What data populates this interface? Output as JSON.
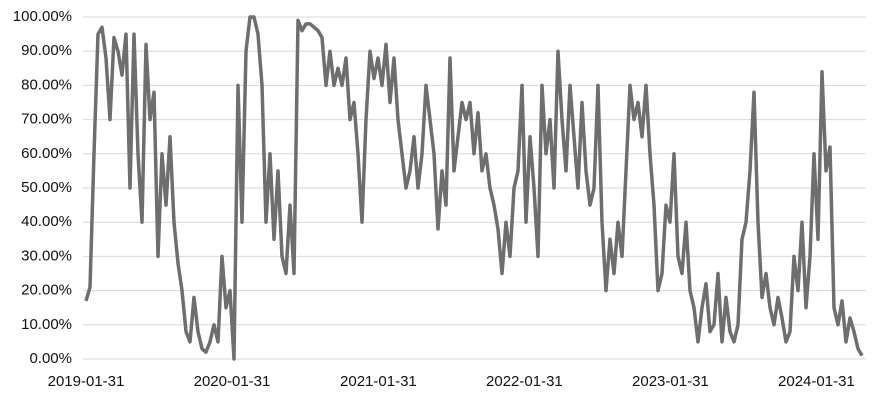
{
  "chart_data": {
    "type": "line",
    "x": [
      "2019-01-31",
      "2019-02-10",
      "2019-02-20",
      "2019-03-02",
      "2019-03-12",
      "2019-03-22",
      "2019-04-01",
      "2019-04-11",
      "2019-04-21",
      "2019-05-01",
      "2019-05-11",
      "2019-05-21",
      "2019-05-31",
      "2019-06-10",
      "2019-06-20",
      "2019-06-30",
      "2019-07-10",
      "2019-07-20",
      "2019-07-30",
      "2019-08-09",
      "2019-08-19",
      "2019-08-29",
      "2019-09-08",
      "2019-09-18",
      "2019-09-28",
      "2019-10-08",
      "2019-10-18",
      "2019-10-28",
      "2019-11-07",
      "2019-11-17",
      "2019-11-27",
      "2019-12-07",
      "2019-12-17",
      "2019-12-27",
      "2020-01-06",
      "2020-01-16",
      "2020-01-26",
      "2020-02-05",
      "2020-02-15",
      "2020-02-25",
      "2020-03-06",
      "2020-03-16",
      "2020-03-26",
      "2020-04-05",
      "2020-04-15",
      "2020-04-25",
      "2020-05-05",
      "2020-05-15",
      "2020-05-25",
      "2020-06-04",
      "2020-06-14",
      "2020-06-24",
      "2020-07-04",
      "2020-07-14",
      "2020-07-24",
      "2020-08-03",
      "2020-08-13",
      "2020-08-23",
      "2020-09-02",
      "2020-09-12",
      "2020-09-22",
      "2020-10-02",
      "2020-10-12",
      "2020-10-22",
      "2020-11-01",
      "2020-11-11",
      "2020-11-21",
      "2020-12-01",
      "2020-12-11",
      "2020-12-21",
      "2020-12-31",
      "2021-01-10",
      "2021-01-20",
      "2021-01-30",
      "2021-02-09",
      "2021-02-19",
      "2021-03-01",
      "2021-03-11",
      "2021-03-21",
      "2021-03-31",
      "2021-04-10",
      "2021-04-20",
      "2021-04-30",
      "2021-05-10",
      "2021-05-20",
      "2021-05-30",
      "2021-06-09",
      "2021-06-19",
      "2021-06-29",
      "2021-07-09",
      "2021-07-19",
      "2021-07-29",
      "2021-08-08",
      "2021-08-18",
      "2021-08-28",
      "2021-09-07",
      "2021-09-17",
      "2021-09-27",
      "2021-10-07",
      "2021-10-17",
      "2021-10-27",
      "2021-11-06",
      "2021-11-16",
      "2021-11-26",
      "2021-12-06",
      "2021-12-16",
      "2021-12-26",
      "2022-01-05",
      "2022-01-15",
      "2022-01-25",
      "2022-02-04",
      "2022-02-14",
      "2022-02-24",
      "2022-03-06",
      "2022-03-16",
      "2022-03-26",
      "2022-04-05",
      "2022-04-15",
      "2022-04-25",
      "2022-05-05",
      "2022-05-15",
      "2022-05-25",
      "2022-06-04",
      "2022-06-14",
      "2022-06-24",
      "2022-07-04",
      "2022-07-14",
      "2022-07-24",
      "2022-08-03",
      "2022-08-13",
      "2022-08-23",
      "2022-09-02",
      "2022-09-12",
      "2022-09-22",
      "2022-10-02",
      "2022-10-12",
      "2022-10-22",
      "2022-11-01",
      "2022-11-11",
      "2022-11-21",
      "2022-12-01",
      "2022-12-11",
      "2022-12-21",
      "2022-12-31",
      "2023-01-10",
      "2023-01-20",
      "2023-01-30",
      "2023-02-09",
      "2023-02-19",
      "2023-03-01",
      "2023-03-11",
      "2023-03-21",
      "2023-03-31",
      "2023-04-10",
      "2023-04-20",
      "2023-04-30",
      "2023-05-10",
      "2023-05-20",
      "2023-05-30",
      "2023-06-09",
      "2023-06-19",
      "2023-06-29",
      "2023-07-09",
      "2023-07-19",
      "2023-07-29",
      "2023-08-08",
      "2023-08-18",
      "2023-08-28",
      "2023-09-07",
      "2023-09-17",
      "2023-09-27",
      "2023-10-07",
      "2023-10-17",
      "2023-10-27",
      "2023-11-06",
      "2023-11-16",
      "2023-11-26",
      "2023-12-06",
      "2023-12-16",
      "2023-12-26",
      "2024-01-05",
      "2024-01-15",
      "2024-01-25",
      "2024-02-04",
      "2024-02-14",
      "2024-02-24",
      "2024-03-05",
      "2024-03-15",
      "2024-03-25",
      "2024-04-04",
      "2024-04-14",
      "2024-04-24",
      "2024-05-04",
      "2024-05-14",
      "2024-05-24"
    ],
    "series": [
      {
        "color": "#6e6e6e",
        "values": [
          17,
          21,
          60,
          95,
          97,
          88,
          70,
          94,
          90,
          83,
          95,
          50,
          95,
          60,
          40,
          92,
          70,
          78,
          30,
          60,
          45,
          65,
          40,
          28,
          20,
          8,
          5,
          18,
          8,
          3,
          2,
          5,
          10,
          5,
          30,
          15,
          20,
          0,
          80,
          40,
          90,
          100,
          100,
          95,
          80,
          40,
          60,
          35,
          55,
          30,
          25,
          45,
          25,
          99,
          96,
          98,
          98,
          97,
          96,
          94,
          80,
          90,
          80,
          85,
          80,
          88,
          70,
          75,
          60,
          40,
          70,
          90,
          82,
          88,
          80,
          92,
          75,
          88,
          70,
          60,
          50,
          55,
          65,
          50,
          60,
          80,
          70,
          60,
          38,
          55,
          45,
          88,
          55,
          65,
          75,
          70,
          75,
          60,
          72,
          55,
          60,
          50,
          45,
          38,
          25,
          40,
          30,
          50,
          55,
          80,
          40,
          65,
          50,
          30,
          80,
          60,
          70,
          50,
          90,
          70,
          55,
          80,
          65,
          50,
          75,
          55,
          45,
          50,
          80,
          40,
          20,
          35,
          25,
          40,
          30,
          55,
          80,
          70,
          75,
          65,
          80,
          60,
          45,
          20,
          25,
          45,
          40,
          60,
          30,
          25,
          40,
          20,
          15,
          5,
          15,
          22,
          8,
          10,
          25,
          5,
          18,
          8,
          5,
          10,
          35,
          40,
          55,
          78,
          40,
          18,
          25,
          15,
          10,
          18,
          12,
          5,
          8,
          30,
          20,
          40,
          15,
          30,
          60,
          35,
          84,
          55,
          62,
          15,
          10,
          17,
          5,
          12,
          8,
          3,
          1
        ]
      }
    ],
    "xlim": [
      "2019-01-31",
      "2024-05-24"
    ],
    "xticks": [
      "2019-01-31",
      "2020-01-31",
      "2021-01-31",
      "2022-01-31",
      "2023-01-31",
      "2024-01-31"
    ],
    "ylim": [
      0,
      100
    ],
    "yticks": [
      {
        "value": 0,
        "label": "0.00%"
      },
      {
        "value": 10,
        "label": "10.00%"
      },
      {
        "value": 20,
        "label": "20.00%"
      },
      {
        "value": 30,
        "label": "30.00%"
      },
      {
        "value": 40,
        "label": "40.00%"
      },
      {
        "value": 50,
        "label": "50.00%"
      },
      {
        "value": 60,
        "label": "60.00%"
      },
      {
        "value": 70,
        "label": "70.00%"
      },
      {
        "value": 80,
        "label": "80.00%"
      },
      {
        "value": 90,
        "label": "90.00%"
      },
      {
        "value": 100,
        "label": "100.00%"
      }
    ],
    "grid": true
  }
}
